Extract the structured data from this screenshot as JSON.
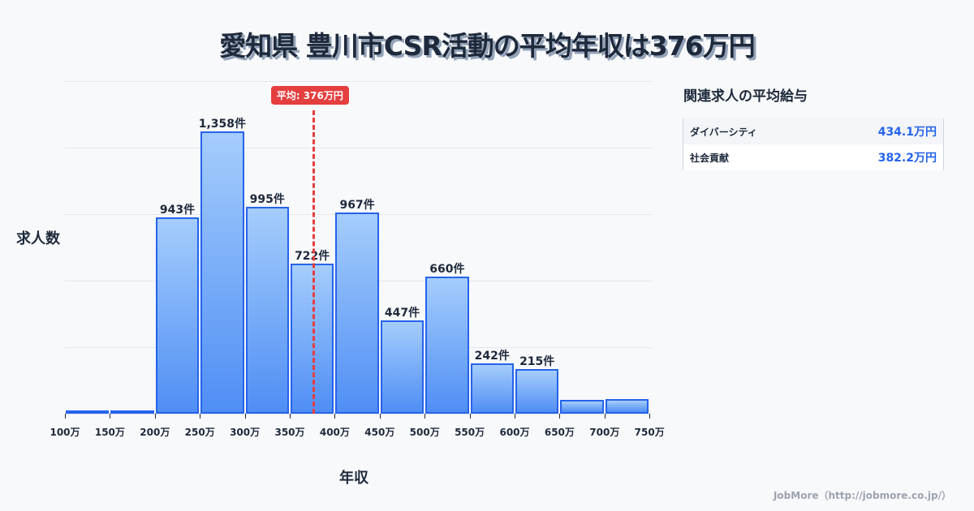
{
  "header": {
    "title": "愛知県 豊川市CSR活動の平均年収は376万円"
  },
  "axes": {
    "ylabel": "求人数",
    "xlabel": "年収"
  },
  "average": {
    "label": "平均: 376万円",
    "value": 376
  },
  "sidebar": {
    "title": "関連求人の平均給与",
    "rows": [
      {
        "name": "ダイバーシティ",
        "value": "434.1万円"
      },
      {
        "name": "社会貢献",
        "value": "382.2万円"
      }
    ]
  },
  "credit": "JobMore（http://jobmore.co.jp/）",
  "chart_data": {
    "type": "bar",
    "title": "愛知県 豊川市CSR活動の平均年収は376万円",
    "xlabel": "年収",
    "ylabel": "求人数",
    "categories": [
      "100-150万",
      "150-200万",
      "200-250万",
      "250-300万",
      "300-350万",
      "350-400万",
      "400-450万",
      "450-500万",
      "500-550万",
      "550-600万",
      "600-650万",
      "650-700万",
      "700-750万"
    ],
    "values": [
      8,
      5,
      943,
      1358,
      995,
      722,
      967,
      447,
      660,
      242,
      215,
      66,
      70
    ],
    "value_labels": [
      "",
      "",
      "943件",
      "1,358件",
      "995件",
      "722件",
      "967件",
      "447件",
      "660件",
      "242件",
      "215件",
      "",
      ""
    ],
    "xticks": [
      "100万",
      "150万",
      "200万",
      "250万",
      "300万",
      "350万",
      "400万",
      "450万",
      "500万",
      "550万",
      "600万",
      "650万",
      "700万",
      "750万"
    ],
    "ylim": [
      0,
      1600
    ],
    "grid": true,
    "average_line": {
      "value": 376,
      "label": "平均: 376万円",
      "color": "#e53e3e"
    },
    "bar_color": "#4f8ef5",
    "bar_border_color": "#2563eb"
  }
}
